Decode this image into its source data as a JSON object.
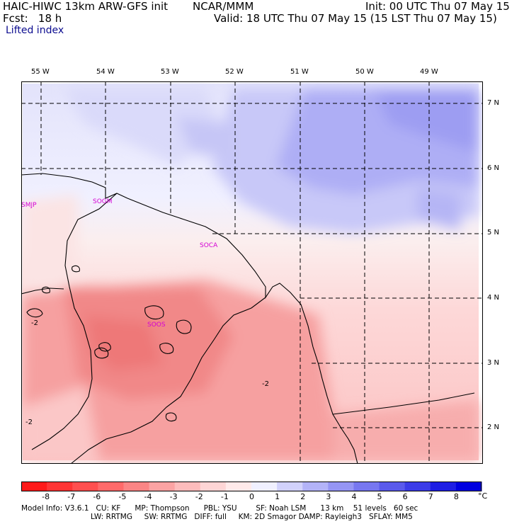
{
  "header": {
    "left1": "HAIC-HIWC 13km ARW-GFS init",
    "center1": "NCAR/MMM",
    "right1": "Init: 00 UTC Thu 07 May 15",
    "left2": "Fcst:   18 h",
    "right2": "Valid: 18 UTC Thu 07 May 15 (15 LST Thu 07 May 15)",
    "field": "Lifted index"
  },
  "map": {
    "lon_labels": [
      "55 W",
      "54 W",
      "53 W",
      "52 W",
      "51 W",
      "50 W",
      "49 W"
    ],
    "lat_labels": [
      "7 N",
      "6 N",
      "5 N",
      "4 N",
      "3 N",
      "2 N"
    ],
    "stations": [
      "SMJP",
      "SOGM",
      "SOCA",
      "SOOS"
    ],
    "contour_labels": [
      "-2",
      "-2",
      "-2"
    ],
    "colors": {
      "land_outline": "#000000",
      "grid": "#000000",
      "station_label": "#d400d4"
    }
  },
  "colorbar": {
    "labels": [
      "-8",
      "-7",
      "-6",
      "-5",
      "-4",
      "-3",
      "-2",
      "-1",
      "0",
      "1",
      "2",
      "3",
      "4",
      "5",
      "6",
      "7",
      "8"
    ],
    "unit": "°C",
    "colors": [
      "#ff1a1a",
      "#ff3535",
      "#ff4f4f",
      "#ff6a6a",
      "#fb8585",
      "#fca3a3",
      "#fdbcbc",
      "#fed5d5",
      "#ffeaea",
      "#f0f0ff",
      "#d2d2fc",
      "#b3b3f8",
      "#9595f4",
      "#7777f0",
      "#5a5aec",
      "#3c3ce8",
      "#1e1ee4",
      "#0000e0"
    ]
  },
  "model_info": {
    "line1": "Model Info: V3.6.1   CU: KF      MP: Thompson      PBL: YSU        SF: Noah LSM      13 km    51 levels   60 sec",
    "line2": "LW: RRTMG     SW: RRTMG   DIFF: full     KM: 2D Smagor DAMP: Rayleigh3   SFLAY: MM5"
  }
}
